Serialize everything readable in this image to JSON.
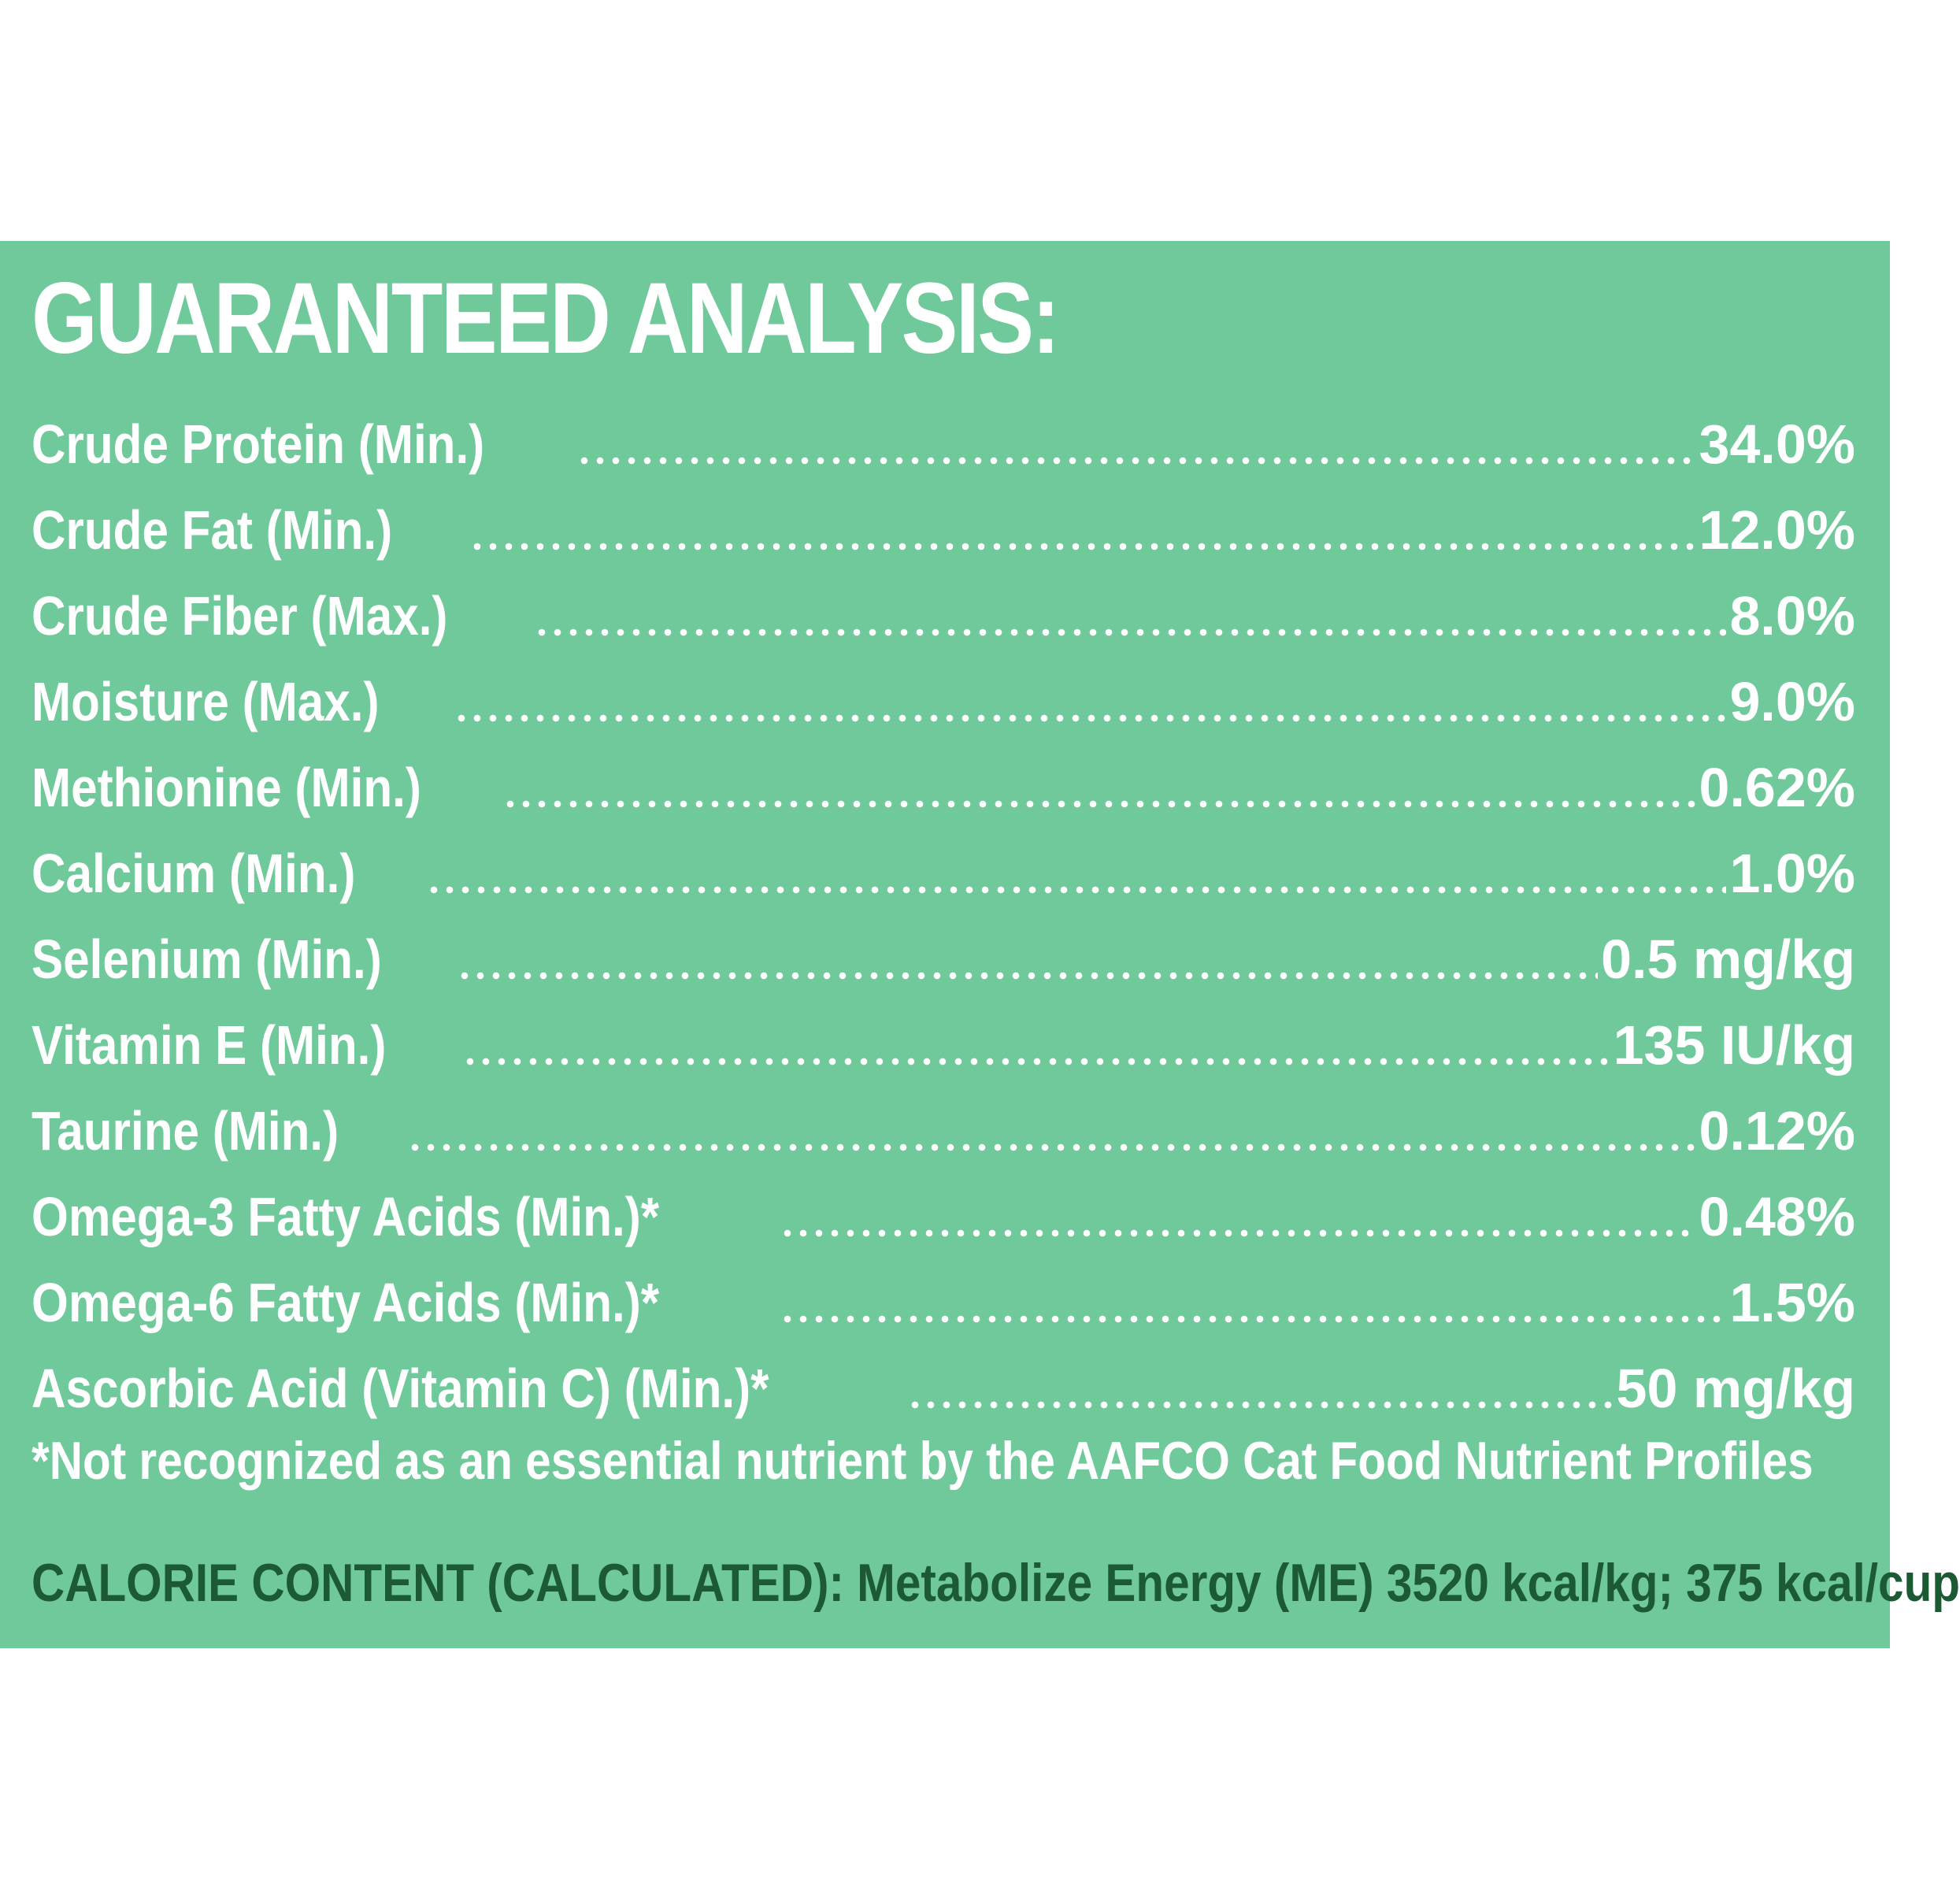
{
  "title": "GUARANTEED ANALYSIS:",
  "nutrients": [
    {
      "label": "Crude Protein (Min.)",
      "value": "34.0%"
    },
    {
      "label": "Crude Fat (Min.)",
      "value": "12.0%"
    },
    {
      "label": "Crude Fiber (Max.)",
      "value": "8.0%"
    },
    {
      "label": "Moisture (Max.)",
      "value": "9.0%"
    },
    {
      "label": "Methionine (Min.)",
      "value": "0.62%"
    },
    {
      "label": "Calcium (Min.)",
      "value": "1.0%"
    },
    {
      "label": "Selenium (Min.)",
      "value": "0.5 mg/kg"
    },
    {
      "label": "Vitamin E (Min.)",
      "value": "135 IU/kg"
    },
    {
      "label": "Taurine (Min.)",
      "value": "0.12%"
    },
    {
      "label": "Omega-3 Fatty Acids (Min.)*",
      "value": "0.48%"
    },
    {
      "label": "Omega-6 Fatty Acids (Min.)*",
      "value": "1.5%"
    },
    {
      "label": "Ascorbic Acid (Vitamin C) (Min.)*",
      "value": "50 mg/kg"
    }
  ],
  "footnote": "*Not recognized as an essential nutrient by the AAFCO Cat Food Nutrient Profiles",
  "calorie_content": "CALORIE CONTENT (CALCULATED): Metabolize Energy (ME) 3520 kcal/kg; 375 kcal/cup",
  "colors": {
    "panel_background": "#70c99a",
    "text_primary": "#ffffff",
    "text_calorie": "#1c5a34",
    "page_background": "#ffffff"
  }
}
